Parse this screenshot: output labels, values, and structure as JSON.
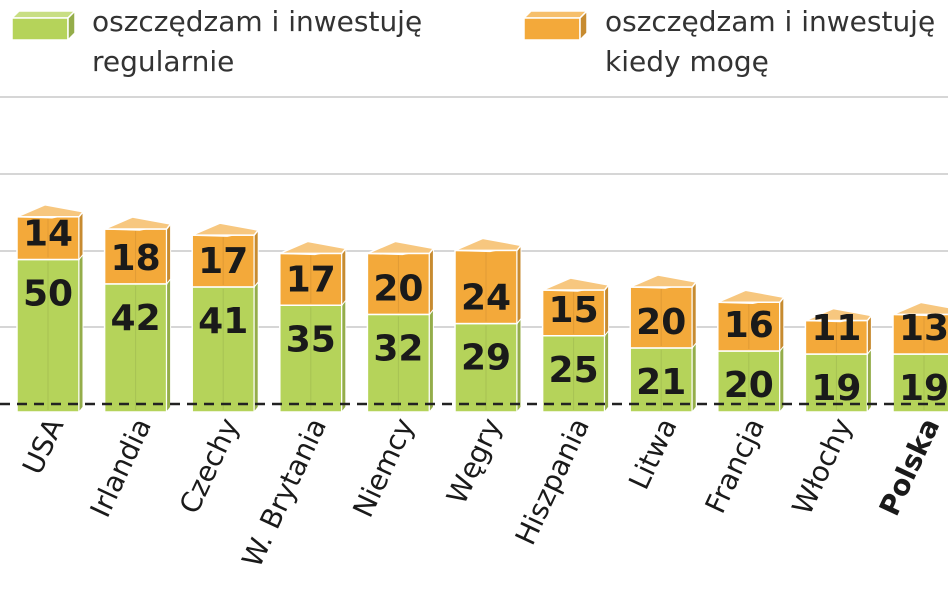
{
  "legend": [
    {
      "label_lines": [
        "oszczędzam i inwestuję",
        "regularnie"
      ],
      "color": "#b5d35a"
    },
    {
      "label_lines": [
        "oszczędzam i inwestuję",
        "kiedy mogę"
      ],
      "color": "#f3a93a"
    }
  ],
  "chart_data": {
    "type": "bar",
    "stacked": true,
    "categories": [
      "USA",
      "Irlandia",
      "Czechy",
      "W. Brytania",
      "Niemcy",
      "Węgry",
      "Hiszpania",
      "Litwa",
      "Francja",
      "Włochy",
      "Polska"
    ],
    "highlighted_category": "Polska",
    "series": [
      {
        "name": "oszczędzam i inwestuję regularnie",
        "values": [
          50,
          42,
          41,
          35,
          32,
          29,
          25,
          21,
          20,
          19,
          19
        ],
        "color": "#b5d35a"
      },
      {
        "name": "oszczędzam i inwestuję kiedy mogę",
        "values": [
          14,
          18,
          17,
          17,
          20,
          24,
          15,
          20,
          16,
          11,
          13
        ],
        "color": "#f3a93a"
      }
    ],
    "grid": true,
    "legend_position": "top"
  }
}
